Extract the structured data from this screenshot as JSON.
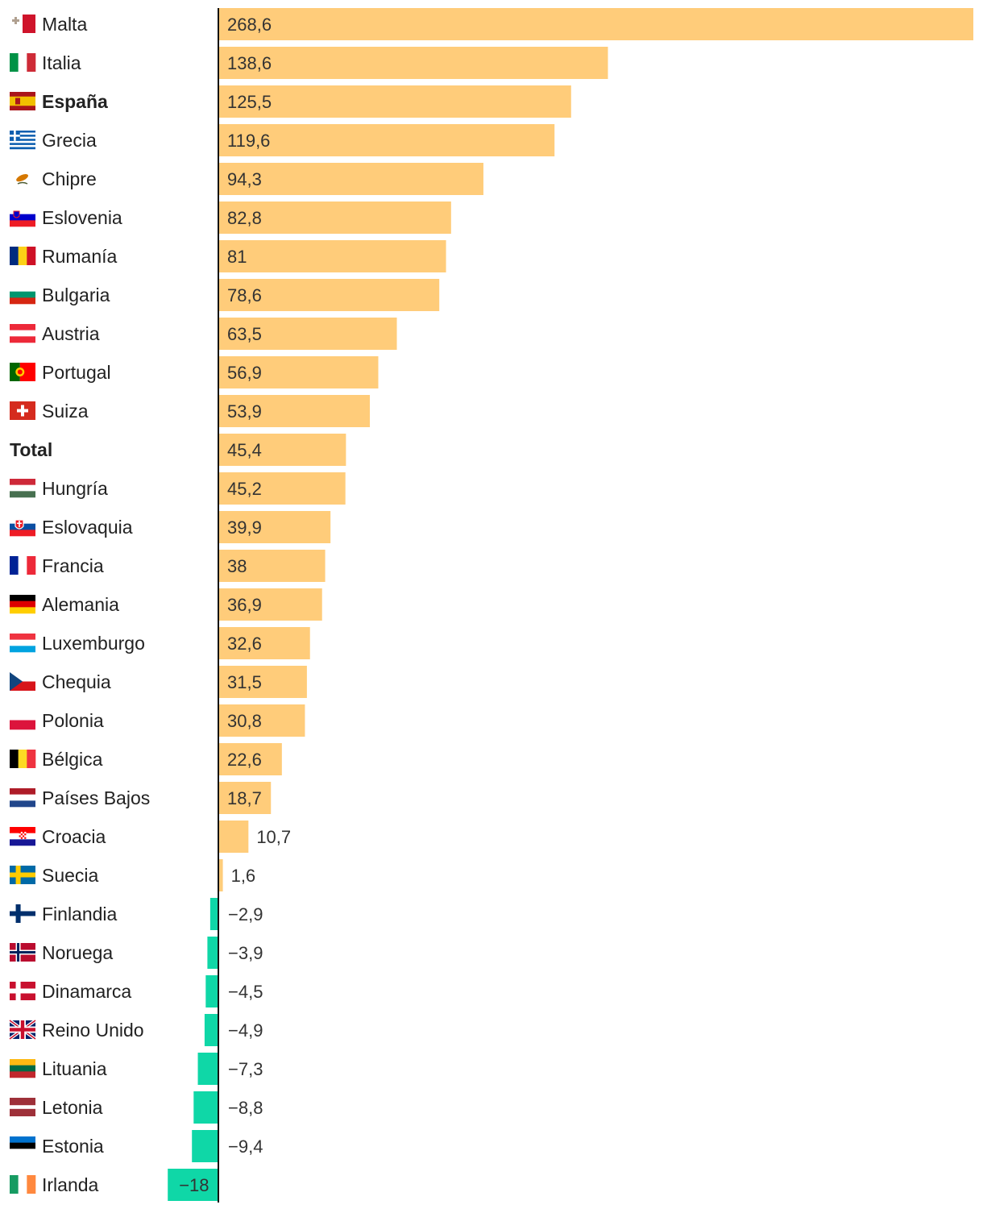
{
  "chart_data": {
    "type": "bar",
    "orientation": "horizontal",
    "title": "",
    "xlabel": "",
    "ylabel": "",
    "colors": {
      "positive": "#ffcc7a",
      "negative": "#0fd7a7",
      "axis": "#111111",
      "text": "#222222"
    },
    "rows": [
      {
        "label": "Malta",
        "value": 268.6,
        "display": "268,6",
        "flag": "malta-flag"
      },
      {
        "label": "Italia",
        "value": 138.6,
        "display": "138,6",
        "flag": "italy-flag"
      },
      {
        "label": "España",
        "value": 125.5,
        "display": "125,5",
        "flag": "spain-flag",
        "bold": true
      },
      {
        "label": "Grecia",
        "value": 119.6,
        "display": "119,6",
        "flag": "greece-flag"
      },
      {
        "label": "Chipre",
        "value": 94.3,
        "display": "94,3",
        "flag": "cyprus-flag"
      },
      {
        "label": "Eslovenia",
        "value": 82.8,
        "display": "82,8",
        "flag": "slovenia-flag"
      },
      {
        "label": "Rumanía",
        "value": 81,
        "display": "81",
        "flag": "romania-flag"
      },
      {
        "label": "Bulgaria",
        "value": 78.6,
        "display": "78,6",
        "flag": "bulgaria-flag"
      },
      {
        "label": "Austria",
        "value": 63.5,
        "display": "63,5",
        "flag": "austria-flag"
      },
      {
        "label": "Portugal",
        "value": 56.9,
        "display": "56,9",
        "flag": "portugal-flag"
      },
      {
        "label": "Suiza",
        "value": 53.9,
        "display": "53,9",
        "flag": "switzerland-flag"
      },
      {
        "label": "Total",
        "value": 45.4,
        "display": "45,4",
        "flag": "",
        "bold": true
      },
      {
        "label": "Hungría",
        "value": 45.2,
        "display": "45,2",
        "flag": "hungary-flag"
      },
      {
        "label": "Eslovaquia",
        "value": 39.9,
        "display": "39,9",
        "flag": "slovakia-flag"
      },
      {
        "label": "Francia",
        "value": 38,
        "display": "38",
        "flag": "france-flag"
      },
      {
        "label": "Alemania",
        "value": 36.9,
        "display": "36,9",
        "flag": "germany-flag"
      },
      {
        "label": "Luxemburgo",
        "value": 32.6,
        "display": "32,6",
        "flag": "luxembourg-flag"
      },
      {
        "label": "Chequia",
        "value": 31.5,
        "display": "31,5",
        "flag": "czechia-flag"
      },
      {
        "label": "Polonia",
        "value": 30.8,
        "display": "30,8",
        "flag": "poland-flag"
      },
      {
        "label": "Bélgica",
        "value": 22.6,
        "display": "22,6",
        "flag": "belgium-flag"
      },
      {
        "label": "Países Bajos",
        "value": 18.7,
        "display": "18,7",
        "flag": "netherlands-flag"
      },
      {
        "label": "Croacia",
        "value": 10.7,
        "display": "10,7",
        "flag": "croatia-flag"
      },
      {
        "label": "Suecia",
        "value": 1.6,
        "display": "1,6",
        "flag": "sweden-flag"
      },
      {
        "label": "Finlandia",
        "value": -2.9,
        "display": "−2,9",
        "flag": "finland-flag"
      },
      {
        "label": "Noruega",
        "value": -3.9,
        "display": "−3,9",
        "flag": "norway-flag"
      },
      {
        "label": "Dinamarca",
        "value": -4.5,
        "display": "−4,5",
        "flag": "denmark-flag"
      },
      {
        "label": "Reino Unido",
        "value": -4.9,
        "display": "−4,9",
        "flag": "uk-flag"
      },
      {
        "label": "Lituania",
        "value": -7.3,
        "display": "−7,3",
        "flag": "lithuania-flag"
      },
      {
        "label": "Letonia",
        "value": -8.8,
        "display": "−8,8",
        "flag": "latvia-flag"
      },
      {
        "label": "Estonia",
        "value": -9.4,
        "display": "−9,4",
        "flag": "estonia-flag"
      },
      {
        "label": "Irlanda",
        "value": -18,
        "display": "−18",
        "flag": "ireland-flag"
      }
    ],
    "xlim": [
      -18,
      268.6
    ]
  }
}
